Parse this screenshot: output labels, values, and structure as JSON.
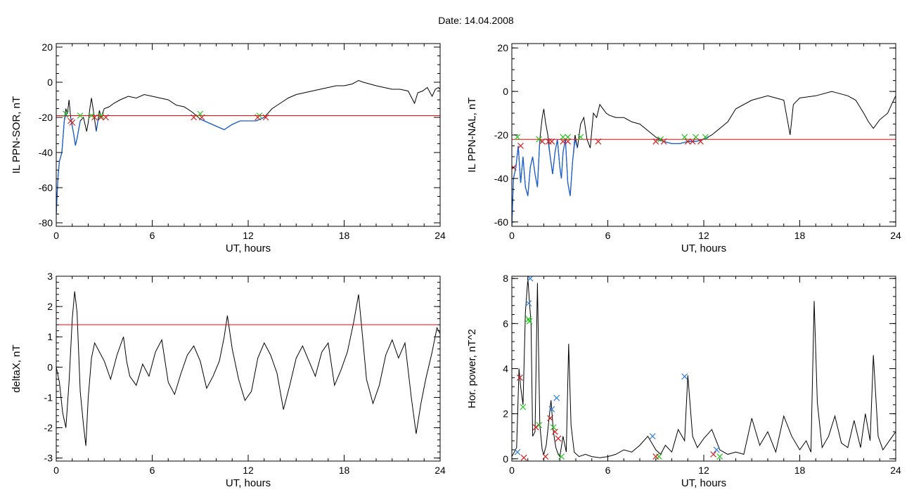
{
  "page_title": "Date:  14.04.2008",
  "colors": {
    "signal": "#000000",
    "threshold": "#ff0000",
    "highlight": "#1a5fd0",
    "marker_green": "#22c622",
    "marker_red": "#cc2222",
    "marker_blue": "#2f7fe0"
  },
  "chart_data": [
    {
      "id": "sor",
      "type": "line",
      "xlabel": "UT, hours",
      "ylabel": "IL PPN-SOR, nT",
      "xlim": [
        0,
        24
      ],
      "ylim": [
        -82,
        22
      ],
      "xticks": [
        0,
        6,
        12,
        18,
        24
      ],
      "yticks": [
        20,
        0,
        -20,
        -40,
        -60,
        -80
      ],
      "threshold": -19,
      "series": [
        {
          "color": "black",
          "x": [
            0,
            0.1,
            0.2,
            0.35,
            0.5,
            0.6,
            0.7,
            0.8,
            0.9,
            1.0,
            1.1,
            1.2,
            1.3,
            1.5,
            1.7,
            1.9,
            2.0,
            2.1,
            2.2,
            2.35,
            2.5,
            2.6,
            2.7,
            2.8,
            3.0,
            3.3,
            3.6,
            4.0,
            4.5,
            5.0,
            5.5,
            6.0,
            6.5,
            7.0,
            7.5,
            8.0,
            8.5,
            9.0,
            9.5,
            10.0,
            10.5,
            11.0,
            11.5,
            12.0,
            12.5,
            13.0,
            13.5,
            14.0,
            14.5,
            15.0,
            15.5,
            16.0,
            16.5,
            17.0,
            17.5,
            18.0,
            18.5,
            18.9,
            19.2,
            19.6,
            20.0,
            20.5,
            21.0,
            21.5,
            22.0,
            22.4,
            22.6,
            22.9,
            23.2,
            23.5,
            23.7,
            23.9,
            24.0
          ],
          "y": [
            -75,
            -55,
            -45,
            -40,
            -22,
            -15,
            -18,
            -10,
            -20,
            -25,
            -30,
            -36,
            -32,
            -22,
            -20,
            -28,
            -23,
            -15,
            -9,
            -18,
            -28,
            -22,
            -16,
            -20,
            -15,
            -14,
            -12,
            -10,
            -8,
            -9,
            -7,
            -8,
            -9,
            -10,
            -13,
            -14,
            -17,
            -21,
            -23,
            -25,
            -27,
            -24,
            -22,
            -22,
            -22,
            -20,
            -15,
            -12,
            -9,
            -7,
            -6,
            -5,
            -4,
            -3,
            -2,
            -2,
            -1,
            1,
            0,
            -1,
            -2,
            -3,
            -4,
            -4,
            -5,
            -12,
            -6,
            -5,
            -3,
            -8,
            -4,
            -3,
            -4
          ]
        }
      ],
      "highlight": {
        "color": "blue",
        "segments": [
          {
            "x": [
              0,
              0.1,
              0.2,
              0.35,
              0.5,
              0.6,
              0.7
            ],
            "y": [
              -75,
              -55,
              -45,
              -40,
              -22,
              -18,
              -20
            ]
          },
          {
            "x": [
              0.9,
              1.0,
              1.1,
              1.2,
              1.3,
              1.5
            ],
            "y": [
              -20,
              -25,
              -30,
              -36,
              -32,
              -22
            ]
          },
          {
            "x": [
              2.5,
              2.6,
              2.7
            ],
            "y": [
              -28,
              -22,
              -20
            ]
          },
          {
            "x": [
              9.0,
              9.5,
              10.0,
              10.5,
              11.0,
              11.5,
              12.0,
              12.5,
              13.0
            ],
            "y": [
              -21,
              -23,
              -25,
              -27,
              -24,
              -22,
              -22,
              -22,
              -20
            ]
          }
        ]
      },
      "markers": {
        "green": {
          "x": [
            0.6,
            1.5,
            2.2,
            2.8,
            9.0,
            12.7
          ],
          "y": [
            -18,
            -19,
            -19,
            -19,
            -18,
            -19
          ]
        },
        "red": {
          "x": [
            0.9,
            1.0,
            2.4,
            2.8,
            3.1,
            8.6,
            9.1,
            12.6,
            13.1
          ],
          "y": [
            -22,
            -23,
            -20,
            -20,
            -20,
            -20,
            -20,
            -20,
            -20
          ]
        }
      }
    },
    {
      "id": "nal",
      "type": "line",
      "xlabel": "UT, hours",
      "ylabel": "IL PPN-NAL, nT",
      "xlim": [
        0,
        24
      ],
      "ylim": [
        -62,
        22
      ],
      "xticks": [
        0,
        6,
        12,
        18,
        24
      ],
      "yticks": [
        20,
        0,
        -20,
        -40,
        -60
      ],
      "threshold": -22,
      "series": [
        {
          "color": "black",
          "x": [
            0,
            0.1,
            0.25,
            0.4,
            0.55,
            0.7,
            0.85,
            1.0,
            1.15,
            1.3,
            1.45,
            1.6,
            1.75,
            1.9,
            2.0,
            2.1,
            2.25,
            2.4,
            2.55,
            2.7,
            2.85,
            3.0,
            3.1,
            3.2,
            3.35,
            3.5,
            3.65,
            3.8,
            3.95,
            4.1,
            4.3,
            4.5,
            4.7,
            4.9,
            5.1,
            5.3,
            5.5,
            5.7,
            5.9,
            6.1,
            6.5,
            7.0,
            7.5,
            8.0,
            8.5,
            9.0,
            9.5,
            10.0,
            10.5,
            11.0,
            11.5,
            12.0,
            12.5,
            13.0,
            13.5,
            14.0,
            15.0,
            16.0,
            16.5,
            17.0,
            17.2,
            17.4,
            17.6,
            18.0,
            19.0,
            20.0,
            20.5,
            21.0,
            21.5,
            22.0,
            22.3,
            22.6,
            23.0,
            23.5,
            23.8,
            24.0
          ],
          "y": [
            -62,
            -40,
            -35,
            -25,
            -42,
            -30,
            -44,
            -48,
            -35,
            -30,
            -38,
            -44,
            -22,
            -12,
            -8,
            -14,
            -20,
            -30,
            -38,
            -28,
            -22,
            -35,
            -40,
            -28,
            -22,
            -42,
            -48,
            -32,
            -20,
            -26,
            -15,
            -12,
            -22,
            -26,
            -10,
            -12,
            -6,
            -8,
            -10,
            -11,
            -12,
            -12,
            -14,
            -15,
            -18,
            -21,
            -23,
            -24,
            -24,
            -23,
            -23,
            -22,
            -20,
            -17,
            -14,
            -8,
            -4,
            -2,
            -3,
            -4,
            -12,
            -20,
            -6,
            -3,
            -2,
            0,
            -1,
            -2,
            -4,
            -10,
            -14,
            -17,
            -13,
            -10,
            -5,
            -2
          ]
        }
      ],
      "highlight": {
        "color": "blue",
        "segments": [
          {
            "x": [
              0,
              0.1,
              0.25,
              0.4,
              0.55,
              0.7,
              0.85,
              1.0,
              1.15,
              1.3,
              1.45,
              1.6,
              1.75
            ],
            "y": [
              -62,
              -40,
              -35,
              -25,
              -42,
              -30,
              -44,
              -48,
              -35,
              -30,
              -38,
              -44,
              -22
            ]
          },
          {
            "x": [
              2.25,
              2.4,
              2.55,
              2.7,
              2.85,
              3.0,
              3.1,
              3.2,
              3.35,
              3.5,
              3.65,
              3.8,
              3.95,
              4.1
            ],
            "y": [
              -22,
              -30,
              -38,
              -28,
              -22,
              -35,
              -40,
              -28,
              -22,
              -42,
              -48,
              -32,
              -22,
              -26
            ]
          },
          {
            "x": [
              9.0,
              9.5,
              10.0,
              10.5,
              11.0,
              11.5,
              12.0,
              12.3
            ],
            "y": [
              -22,
              -23,
              -24,
              -24,
              -23,
              -23,
              -22,
              -21
            ]
          }
        ]
      },
      "markers": {
        "green": {
          "x": [
            0.35,
            1.7,
            3.2,
            3.5,
            4.3,
            9.3,
            10.8,
            11.5,
            12.1
          ],
          "y": [
            -21,
            -22,
            -21,
            -21,
            -21,
            -22,
            -21,
            -21,
            -21
          ]
        },
        "red": {
          "x": [
            0.1,
            0.55,
            1.9,
            2.3,
            2.5,
            3.2,
            3.5,
            5.4,
            9.0,
            9.5,
            11.0,
            11.3,
            11.8
          ],
          "y": [
            -35,
            -25,
            -23,
            -23,
            -23,
            -23,
            -23,
            -23,
            -23,
            -23,
            -23,
            -23,
            -23
          ]
        }
      }
    },
    {
      "id": "deltax",
      "type": "line",
      "xlabel": "UT, hours",
      "ylabel": "deltaX, nT",
      "xlim": [
        0,
        24
      ],
      "ylim": [
        -3.1,
        3.0
      ],
      "xticks": [
        0,
        6,
        12,
        18,
        24
      ],
      "yticks": [
        3,
        2,
        1,
        0,
        -1,
        -2,
        -3
      ],
      "threshold": 1.4,
      "series": [
        {
          "color": "black",
          "x": [
            0,
            0.2,
            0.4,
            0.6,
            0.8,
            1.0,
            1.15,
            1.3,
            1.5,
            1.7,
            1.85,
            2.0,
            2.2,
            2.4,
            2.6,
            3.0,
            3.4,
            3.8,
            4.2,
            4.4,
            4.6,
            5.0,
            5.4,
            5.8,
            6.2,
            6.6,
            7.0,
            7.4,
            7.8,
            8.2,
            8.6,
            9.0,
            9.4,
            9.8,
            10.2,
            10.5,
            10.7,
            11.0,
            11.4,
            11.8,
            12.2,
            12.6,
            13.0,
            13.4,
            13.8,
            14.2,
            14.6,
            15.0,
            15.4,
            15.8,
            16.2,
            16.6,
            17.0,
            17.4,
            17.8,
            18.2,
            18.6,
            18.9,
            19.1,
            19.4,
            19.8,
            20.2,
            20.6,
            21.0,
            21.4,
            21.8,
            22.2,
            22.5,
            22.8,
            23.1,
            23.5,
            23.8,
            24.0
          ],
          "y": [
            0,
            -0.5,
            -1.5,
            -2.0,
            -0.5,
            1.6,
            2.5,
            1.8,
            -0.8,
            -1.9,
            -2.6,
            -1.0,
            0.3,
            0.8,
            0.6,
            0.2,
            -0.4,
            0.4,
            1.0,
            0.2,
            -0.3,
            -0.6,
            0.1,
            -0.3,
            0.5,
            0.9,
            -0.5,
            -0.9,
            -0.2,
            0.4,
            0.7,
            0.2,
            -0.7,
            -0.3,
            0.2,
            1.0,
            1.7,
            0.6,
            -0.4,
            -1.1,
            -0.8,
            0.3,
            0.8,
            0.4,
            -0.2,
            -1.4,
            -0.6,
            0.3,
            0.7,
            0.2,
            -0.3,
            0.5,
            0.8,
            -0.6,
            -0.1,
            0.5,
            1.5,
            2.4,
            1.3,
            -0.4,
            -1.2,
            -0.6,
            0.4,
            0.9,
            0.3,
            0.8,
            -1.0,
            -2.2,
            -1.2,
            -0.4,
            0.5,
            1.3,
            1.1
          ]
        }
      ]
    },
    {
      "id": "hpower",
      "type": "line",
      "xlabel": "UT, hours",
      "ylabel": "Hor. power, nT^2",
      "xlim": [
        0,
        24
      ],
      "ylim": [
        -0.1,
        8.1
      ],
      "xticks": [
        0,
        6,
        12,
        18,
        24
      ],
      "yticks": [
        8,
        6,
        4,
        2,
        0
      ],
      "series": [
        {
          "color": "black",
          "x": [
            0,
            0.15,
            0.3,
            0.45,
            0.55,
            0.7,
            0.85,
            1.0,
            1.1,
            1.2,
            1.3,
            1.45,
            1.6,
            1.75,
            1.9,
            2.0,
            2.15,
            2.3,
            2.45,
            2.6,
            2.75,
            2.9,
            3.0,
            3.2,
            3.4,
            3.55,
            3.7,
            3.9,
            4.2,
            4.6,
            5.0,
            5.5,
            6.0,
            6.5,
            7.0,
            7.5,
            8.0,
            8.5,
            9.0,
            9.3,
            9.6,
            10.0,
            10.4,
            10.8,
            11.0,
            11.3,
            11.6,
            12.0,
            12.5,
            13.0,
            13.5,
            14.0,
            14.5,
            15.0,
            15.5,
            16.0,
            16.5,
            17.0,
            17.5,
            18.0,
            18.4,
            18.7,
            18.9,
            19.1,
            19.4,
            19.8,
            20.2,
            20.6,
            21.0,
            21.4,
            21.8,
            22.1,
            22.4,
            22.6,
            22.9,
            23.2,
            23.6,
            24.0
          ],
          "y": [
            0.1,
            0.3,
            0.5,
            4.0,
            3.2,
            2.4,
            6.5,
            8.0,
            7.0,
            6.0,
            1.0,
            1.2,
            7.8,
            1.5,
            0.4,
            0.2,
            0.6,
            1.6,
            2.6,
            1.2,
            0.5,
            0.2,
            0.1,
            1.0,
            0.3,
            5.1,
            1.5,
            0.3,
            0.1,
            0.2,
            0.1,
            0.05,
            0.1,
            0.2,
            0.4,
            0.3,
            0.6,
            1.0,
            0.4,
            0.2,
            0.6,
            0.3,
            1.3,
            0.8,
            3.7,
            1.0,
            0.5,
            0.9,
            1.3,
            0.4,
            0.2,
            0.3,
            0.2,
            1.8,
            0.6,
            1.2,
            0.3,
            1.9,
            1.0,
            0.4,
            0.8,
            0.3,
            7.0,
            2.5,
            0.5,
            1.0,
            1.9,
            0.7,
            0.5,
            1.7,
            0.5,
            2.0,
            0.8,
            4.6,
            1.0,
            0.4,
            0.8,
            1.2
          ]
        }
      ],
      "markers": {
        "green": {
          "x": [
            0.7,
            1.05,
            1.1,
            1.7,
            2.6,
            3.1,
            9.2,
            13.0
          ],
          "y": [
            2.3,
            6.2,
            6.1,
            1.5,
            1.4,
            0.1,
            0.1,
            0.1
          ]
        },
        "red": {
          "x": [
            0.5,
            0.75,
            1.5,
            2.1,
            2.4,
            2.7,
            2.9,
            9.0,
            12.6
          ],
          "y": [
            3.6,
            0.05,
            1.4,
            0.1,
            1.8,
            1.2,
            0.9,
            0.1,
            0.2
          ]
        },
        "blue": {
          "x": [
            0.35,
            1.05,
            1.15,
            2.5,
            2.8,
            8.8,
            10.8,
            12.8
          ],
          "y": [
            0.3,
            6.9,
            8.0,
            2.2,
            2.7,
            1.0,
            3.65,
            0.4
          ]
        }
      }
    }
  ]
}
